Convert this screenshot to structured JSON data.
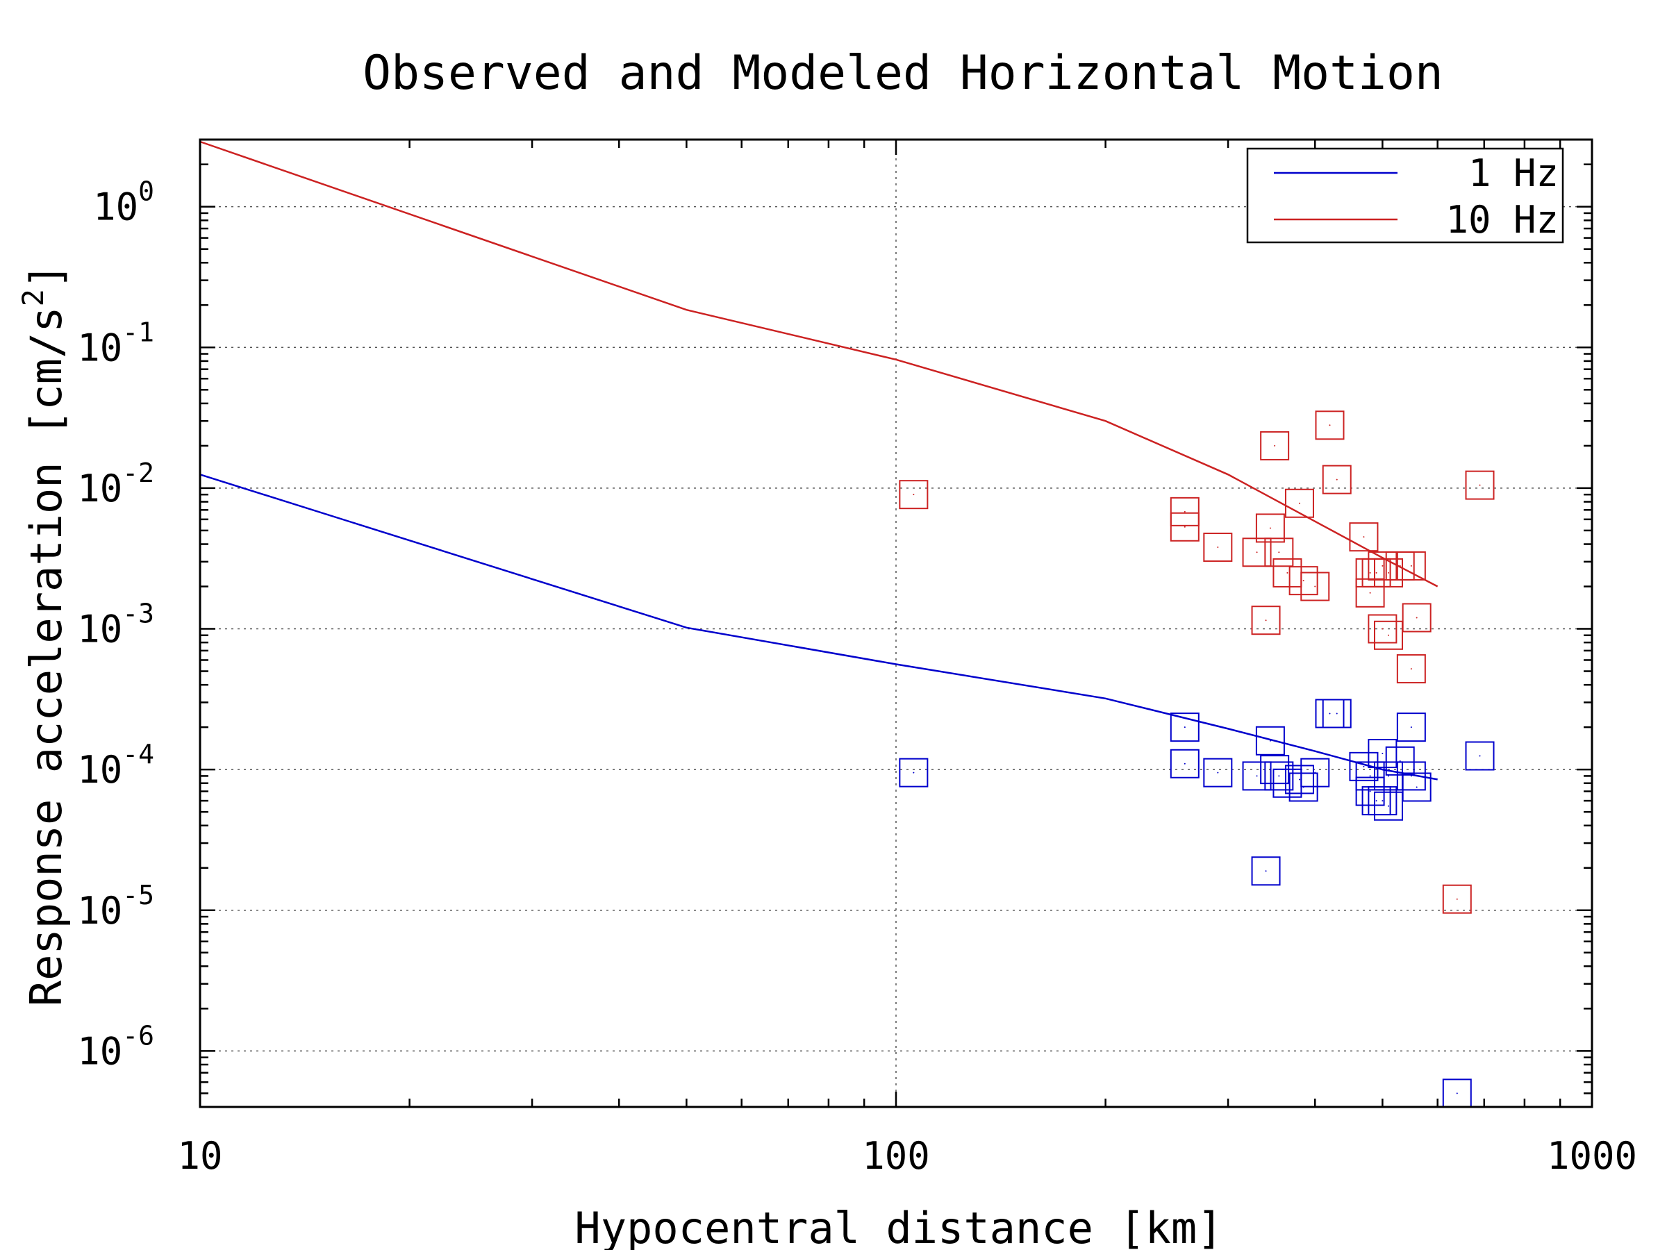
{
  "chart_data": {
    "type": "scatter",
    "title": "Observed and Modeled Horizontal Motion",
    "xlabel": "Hypocentral distance [km]",
    "ylabel": "Response acceleration [cm/s²]",
    "xscale": "log",
    "yscale": "log",
    "xlim": [
      10,
      1000
    ],
    "ylim": [
      4e-07,
      3
    ],
    "xticks": [
      {
        "value": 10,
        "label": "10"
      },
      {
        "value": 100,
        "label": "100"
      },
      {
        "value": 1000,
        "label": "1000"
      }
    ],
    "yticks": [
      {
        "value": 1,
        "base": "10",
        "exp": "0"
      },
      {
        "value": 0.1,
        "base": "10",
        "exp": "-1"
      },
      {
        "value": 0.01,
        "base": "10",
        "exp": "-2"
      },
      {
        "value": 0.001,
        "base": "10",
        "exp": "-3"
      },
      {
        "value": 0.0001,
        "base": "10",
        "exp": "-4"
      },
      {
        "value": 1e-05,
        "base": "10",
        "exp": "-5"
      },
      {
        "value": 1e-06,
        "base": "10",
        "exp": "-6"
      }
    ],
    "grid": true,
    "legend_position": "top-right",
    "series": [
      {
        "name": "1 Hz",
        "color": "#0000cc",
        "model": {
          "x": [
            10,
            50,
            100,
            200,
            300,
            400,
            500,
            600
          ],
          "y": [
            0.0125,
            0.00102,
            0.00056,
            0.00032,
            0.000195,
            0.000135,
            0.0001,
            8.5e-05
          ]
        },
        "observed": {
          "x": [
            106,
            260,
            260,
            290,
            330,
            340,
            345,
            350,
            355,
            365,
            380,
            385,
            400,
            420,
            430,
            470,
            480,
            480,
            490,
            500,
            500,
            510,
            510,
            530,
            550,
            550,
            560,
            640,
            690
          ],
          "y": [
            9.5e-05,
            0.0002,
            0.00011,
            9.5e-05,
            9e-05,
            1.9e-05,
            0.00016,
            0.0001,
            9e-05,
            8e-05,
            8.5e-05,
            7.5e-05,
            9.5e-05,
            0.00025,
            0.00025,
            0.000105,
            7e-05,
            9e-05,
            6e-05,
            6e-05,
            0.00013,
            9e-05,
            5.5e-05,
            0.000115,
            9e-05,
            0.0002,
            7.5e-05,
            5e-07,
            0.000125
          ]
        }
      },
      {
        "name": "10 Hz",
        "color": "#cc2222",
        "model": {
          "x": [
            10,
            50,
            100,
            200,
            300,
            400,
            500,
            600
          ],
          "y": [
            2.9,
            0.185,
            0.082,
            0.03,
            0.0125,
            0.0058,
            0.0032,
            0.002
          ]
        },
        "observed": {
          "x": [
            106,
            260,
            260,
            290,
            330,
            340,
            345,
            350,
            355,
            365,
            380,
            385,
            400,
            420,
            430,
            470,
            480,
            480,
            490,
            500,
            500,
            510,
            510,
            530,
            550,
            550,
            560,
            640,
            690
          ],
          "y": [
            0.009,
            0.0068,
            0.0053,
            0.0038,
            0.0035,
            0.00115,
            0.0052,
            0.02,
            0.0035,
            0.0025,
            0.0078,
            0.0022,
            0.002,
            0.028,
            0.0115,
            0.0045,
            0.0025,
            0.0018,
            0.0025,
            0.0028,
            0.001,
            0.0025,
            0.0009,
            0.0028,
            0.00052,
            0.0028,
            0.0012,
            1.2e-05,
            0.0105
          ]
        }
      }
    ]
  }
}
